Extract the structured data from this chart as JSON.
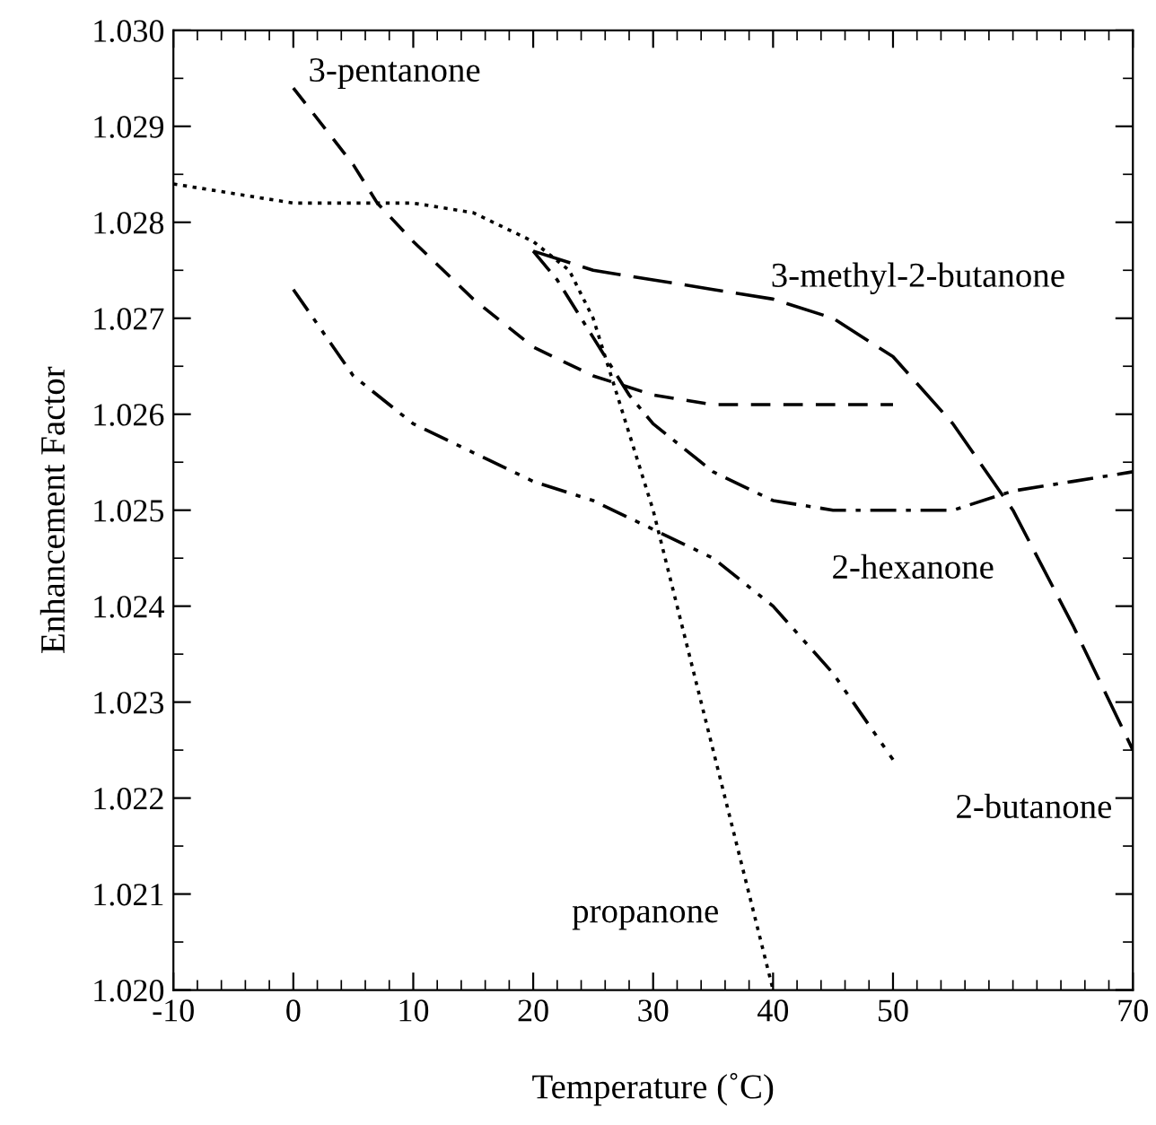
{
  "chart_data": {
    "type": "line",
    "xlabel": "Temperature (˚C)",
    "ylabel": "Enhancement Factor",
    "xlim": [
      -10,
      70
    ],
    "ylim": [
      1.02,
      1.03
    ],
    "xticks": [
      -10,
      {
        "value": -8,
        "label": null
      },
      {
        "value": -6,
        "label": null
      },
      {
        "value": -4,
        "label": null
      },
      {
        "value": -2,
        "label": null
      },
      0,
      {
        "value": 2,
        "label": null
      },
      {
        "value": 4,
        "label": null
      },
      {
        "value": 6,
        "label": null
      },
      {
        "value": 8,
        "label": null
      },
      10,
      {
        "value": 12,
        "label": null
      },
      {
        "value": 14,
        "label": null
      },
      {
        "value": 16,
        "label": null
      },
      {
        "value": 18,
        "label": null
      },
      20,
      {
        "value": 22,
        "label": null
      },
      {
        "value": 24,
        "label": null
      },
      {
        "value": 26,
        "label": null
      },
      {
        "value": 28,
        "label": null
      },
      30,
      {
        "value": 32,
        "label": null
      },
      {
        "value": 34,
        "label": null
      },
      {
        "value": 36,
        "label": null
      },
      {
        "value": 38,
        "label": null
      },
      40,
      {
        "value": 42,
        "label": null
      },
      {
        "value": 44,
        "label": null
      },
      {
        "value": 46,
        "label": null
      },
      {
        "value": 48,
        "label": null
      },
      50,
      {
        "value": 52,
        "label": null
      },
      {
        "value": 54,
        "label": null
      },
      {
        "value": 56,
        "label": null
      },
      {
        "value": 58,
        "label": null
      },
      {
        "value": 60,
        "label": null
      },
      {
        "value": 62,
        "label": null
      },
      {
        "value": 64,
        "label": null
      },
      {
        "value": 66,
        "label": null
      },
      {
        "value": 68,
        "label": null
      },
      70
    ],
    "yticks": [
      {
        "value": 1.02,
        "label": "1.020"
      },
      {
        "value": 1.0205,
        "label": null
      },
      {
        "value": 1.021,
        "label": "1.021"
      },
      {
        "value": 1.0215,
        "label": null
      },
      {
        "value": 1.022,
        "label": "1.022"
      },
      {
        "value": 1.0225,
        "label": null
      },
      {
        "value": 1.023,
        "label": "1.023"
      },
      {
        "value": 1.0235,
        "label": null
      },
      {
        "value": 1.024,
        "label": "1.024"
      },
      {
        "value": 1.0245,
        "label": null
      },
      {
        "value": 1.025,
        "label": "1.025"
      },
      {
        "value": 1.0255,
        "label": null
      },
      {
        "value": 1.026,
        "label": "1.026"
      },
      {
        "value": 1.0265,
        "label": null
      },
      {
        "value": 1.027,
        "label": "1.027"
      },
      {
        "value": 1.0275,
        "label": null
      },
      {
        "value": 1.028,
        "label": "1.028"
      },
      {
        "value": 1.0285,
        "label": null
      },
      {
        "value": 1.029,
        "label": "1.029"
      },
      {
        "value": 1.0295,
        "label": null
      },
      {
        "value": 1.03,
        "label": "1.030"
      }
    ],
    "grid": false,
    "legend": false,
    "marker": "none",
    "series": [
      {
        "color": "#000000",
        "line_style": "dotted",
        "x": [
          -10,
          0,
          10,
          15,
          20,
          23,
          25,
          27,
          30,
          33,
          36,
          38,
          40
        ],
        "values": [
          1.0284,
          1.0282,
          1.0282,
          1.0281,
          1.0278,
          1.0275,
          1.027,
          1.0262,
          1.025,
          1.0235,
          1.022,
          1.021,
          1.02
        ]
      },
      {
        "color": "#000000",
        "line_style": "dashed",
        "x": [
          0,
          5,
          7,
          10,
          15,
          20,
          25,
          30,
          35,
          40,
          50
        ],
        "values": [
          1.0294,
          1.0286,
          1.0282,
          1.0278,
          1.0272,
          1.0267,
          1.0264,
          1.0262,
          1.0261,
          1.0261,
          1.0261
        ]
      },
      {
        "color": "#000000",
        "line_style": "longdash",
        "x": [
          20,
          25,
          30,
          35,
          40,
          45,
          50,
          55,
          60,
          65,
          70
        ],
        "values": [
          1.0277,
          1.0275,
          1.0274,
          1.0273,
          1.0272,
          1.027,
          1.0266,
          1.0259,
          1.025,
          1.0238,
          1.0225
        ]
      },
      {
        "color": "#000000",
        "line_style": "dashdot",
        "x": [
          20,
          22,
          25,
          28,
          30,
          35,
          40,
          45,
          50,
          55,
          60,
          65,
          70
        ],
        "values": [
          1.0277,
          1.0274,
          1.0268,
          1.0262,
          1.0259,
          1.0254,
          1.0251,
          1.025,
          1.025,
          1.025,
          1.0252,
          1.0253,
          1.0254
        ]
      },
      {
        "color": "#000000",
        "line_style": "dashdotdot",
        "x": [
          0,
          5,
          10,
          15,
          20,
          25,
          30,
          35,
          40,
          45,
          50
        ],
        "values": [
          1.0273,
          1.0264,
          1.0259,
          1.0256,
          1.0253,
          1.0251,
          1.0248,
          1.0245,
          1.024,
          1.0233,
          1.0224
        ]
      }
    ],
    "annotations": [
      {
        "text": "3-pentanone",
        "x": 0,
        "y": 1.0294
      },
      {
        "text": "3-methyl-2-butanone",
        "x": 45,
        "y": 1.027
      },
      {
        "text": "2-hexanone",
        "x": 50,
        "y": 1.025
      },
      {
        "text": "2-butanone",
        "x": 50,
        "y": 1.0224
      },
      {
        "text": "propanone",
        "x": 38,
        "y": 1.021
      }
    ]
  }
}
